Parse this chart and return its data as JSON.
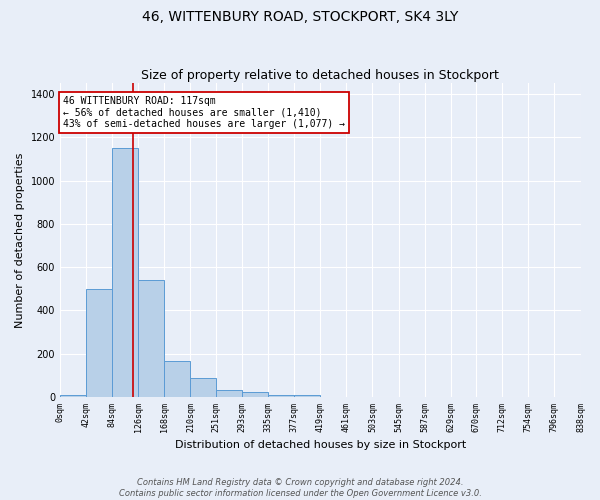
{
  "title": "46, WITTENBURY ROAD, STOCKPORT, SK4 3LY",
  "subtitle": "Size of property relative to detached houses in Stockport",
  "xlabel": "Distribution of detached houses by size in Stockport",
  "ylabel": "Number of detached properties",
  "bin_edges": [
    0,
    42,
    84,
    126,
    168,
    210,
    251,
    293,
    335,
    377,
    419,
    461,
    503,
    545,
    587,
    629,
    670,
    712,
    754,
    796,
    838
  ],
  "bar_heights": [
    10,
    500,
    1150,
    540,
    165,
    85,
    30,
    20,
    10,
    10,
    0,
    0,
    0,
    0,
    0,
    0,
    0,
    0,
    0,
    0
  ],
  "bar_color": "#b8d0e8",
  "bar_edge_color": "#5b9bd5",
  "vline_color": "#cc0000",
  "vline_x": 117,
  "annotation_text": "46 WITTENBURY ROAD: 117sqm\n← 56% of detached houses are smaller (1,410)\n43% of semi-detached houses are larger (1,077) →",
  "annotation_box_facecolor": "#ffffff",
  "annotation_box_edgecolor": "#cc0000",
  "ylim": [
    0,
    1450
  ],
  "yticks": [
    0,
    200,
    400,
    600,
    800,
    1000,
    1200,
    1400
  ],
  "tick_labels": [
    "0sqm",
    "42sqm",
    "84sqm",
    "126sqm",
    "168sqm",
    "210sqm",
    "251sqm",
    "293sqm",
    "335sqm",
    "377sqm",
    "419sqm",
    "461sqm",
    "503sqm",
    "545sqm",
    "587sqm",
    "629sqm",
    "670sqm",
    "712sqm",
    "754sqm",
    "796sqm",
    "838sqm"
  ],
  "footer": "Contains HM Land Registry data © Crown copyright and database right 2024.\nContains public sector information licensed under the Open Government Licence v3.0.",
  "bg_color": "#e8eef8",
  "grid_color": "#ffffff",
  "title_fontsize": 10,
  "subtitle_fontsize": 9,
  "ylabel_fontsize": 8,
  "xlabel_fontsize": 8,
  "tick_fontsize": 6,
  "ytick_fontsize": 7,
  "annotation_fontsize": 7,
  "footer_fontsize": 6
}
